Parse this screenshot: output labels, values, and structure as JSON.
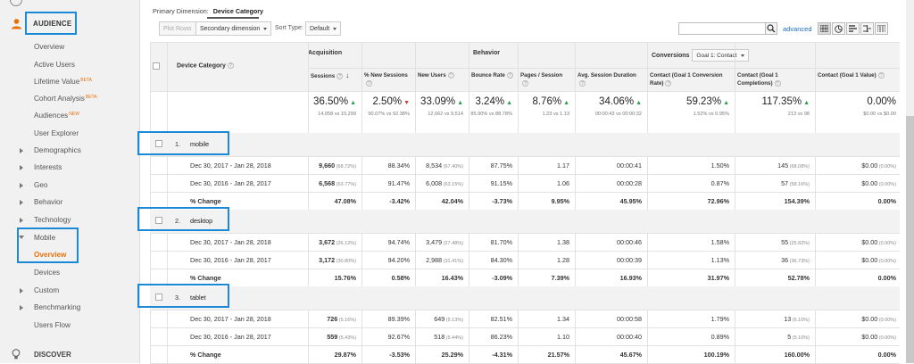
{
  "sidebar": {
    "audience": "AUDIENCE",
    "items": [
      {
        "label": "Overview"
      },
      {
        "label": "Active Users"
      },
      {
        "label": "Lifetime Value",
        "badge": "BETA"
      },
      {
        "label": "Cohort Analysis",
        "badge": "BETA"
      },
      {
        "label": "Audiences",
        "badge": "NEW"
      },
      {
        "label": "User Explorer"
      },
      {
        "label": "Demographics"
      },
      {
        "label": "Interests"
      },
      {
        "label": "Geo"
      },
      {
        "label": "Behavior"
      },
      {
        "label": "Technology"
      },
      {
        "label": "Mobile"
      },
      {
        "label": "Overview"
      },
      {
        "label": "Devices"
      },
      {
        "label": "Custom"
      },
      {
        "label": "Benchmarking"
      },
      {
        "label": "Users Flow"
      }
    ],
    "discover": "DISCOVER"
  },
  "toolbar": {
    "primary_dimension_label": "Primary Dimension:",
    "primary_dimension_value": "Device Category",
    "plot_rows": "Plot Rows",
    "secondary_dimension": "Secondary dimension",
    "sort_type_label": "Sort Type:",
    "sort_type_value": "Default",
    "advanced": "advanced",
    "conversions_label": "Conversions",
    "conversions_value": "Goal 1: Contact"
  },
  "table": {
    "col_device": "Device Category",
    "group_acquisition": "Acquisition",
    "group_behavior": "Behavior",
    "headers": [
      "Sessions",
      "% New Sessions",
      "New Users",
      "Bounce Rate",
      "Pages / Session",
      "Avg. Session Duration",
      "Contact (Goal 1 Conversion Rate)",
      "Contact (Goal 1 Completions)",
      "Contact (Goal 1 Value)"
    ],
    "totals": [
      {
        "value": "36.50%",
        "dir": "up",
        "sub": "14,058 vs 10,299"
      },
      {
        "value": "2.50%",
        "dir": "down",
        "sub": "90.07% vs 92.38%"
      },
      {
        "value": "33.09%",
        "dir": "up",
        "sub": "12,662 vs 9,514"
      },
      {
        "value": "3.24%",
        "dir": "up",
        "sub": "85.90% vs 88.78%"
      },
      {
        "value": "8.76%",
        "dir": "up",
        "sub": "1.23 vs 1.13"
      },
      {
        "value": "34.06%",
        "dir": "up",
        "sub": "00:00:43 vs 00:00:32"
      },
      {
        "value": "59.23%",
        "dir": "up",
        "sub": "1.52% vs 0.95%"
      },
      {
        "value": "117.35%",
        "dir": "up",
        "sub": "213 vs 98"
      },
      {
        "value": "0.00%",
        "dir": "",
        "sub": "$0.00 vs $0.00"
      }
    ],
    "groups": [
      {
        "idx": "1.",
        "name": "mobile",
        "rows": [
          {
            "label": "Dec 30, 2017 - Jan 28, 2018",
            "cells": [
              "9,660|(68.72%)",
              "88.34%",
              "8,534|(67.40%)",
              "87.75%",
              "1.17",
              "00:00:41",
              "1.50%",
              "145|(68.08%)",
              "$0.00|(0.00%)"
            ]
          },
          {
            "label": "Dec 30, 2016 - Jan 28, 2017",
            "cells": [
              "6,568|(63.77%)",
              "91.47%",
              "6,008|(63.15%)",
              "91.15%",
              "1.06",
              "00:00:28",
              "0.87%",
              "57|(58.16%)",
              "$0.00|(0.00%)"
            ]
          },
          {
            "label": "% Change",
            "cells": [
              "47.08%",
              "-3.42%",
              "42.04%",
              "-3.73%",
              "9.95%",
              "45.95%",
              "72.96%",
              "154.39%",
              "0.00%"
            ]
          }
        ]
      },
      {
        "idx": "2.",
        "name": "desktop",
        "rows": [
          {
            "label": "Dec 30, 2017 - Jan 28, 2018",
            "cells": [
              "3,672|(26.12%)",
              "94.74%",
              "3,479|(27.48%)",
              "81.70%",
              "1.38",
              "00:00:46",
              "1.58%",
              "55|(25.82%)",
              "$0.00|(0.00%)"
            ]
          },
          {
            "label": "Dec 30, 2016 - Jan 28, 2017",
            "cells": [
              "3,172|(30.80%)",
              "94.20%",
              "2,988|(31.41%)",
              "84.30%",
              "1.28",
              "00:00:39",
              "1.13%",
              "36|(36.73%)",
              "$0.00|(0.00%)"
            ]
          },
          {
            "label": "% Change",
            "cells": [
              "15.76%",
              "0.58%",
              "16.43%",
              "-3.09%",
              "7.39%",
              "16.93%",
              "31.97%",
              "52.78%",
              "0.00%"
            ]
          }
        ]
      },
      {
        "idx": "3.",
        "name": "tablet",
        "rows": [
          {
            "label": "Dec 30, 2017 - Jan 28, 2018",
            "cells": [
              "726|(5.16%)",
              "89.39%",
              "649|(5.13%)",
              "82.51%",
              "1.34",
              "00:00:58",
              "1.79%",
              "13|(6.10%)",
              "$0.00|(0.00%)"
            ]
          },
          {
            "label": "Dec 30, 2016 - Jan 28, 2017",
            "cells": [
              "559|(5.43%)",
              "92.67%",
              "518|(5.44%)",
              "86.23%",
              "1.10",
              "00:00:40",
              "0.89%",
              "5|(5.10%)",
              "$0.00|(0.00%)"
            ]
          },
          {
            "label": "% Change",
            "cells": [
              "29.87%",
              "-3.53%",
              "25.29%",
              "-4.31%",
              "21.57%",
              "45.67%",
              "100.19%",
              "160.00%",
              "0.00%"
            ]
          }
        ]
      }
    ]
  }
}
